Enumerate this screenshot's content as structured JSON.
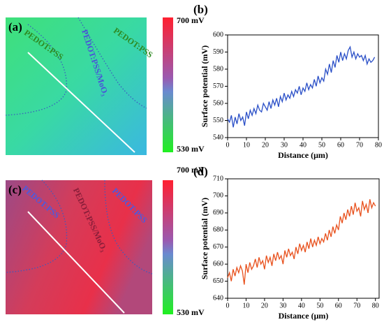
{
  "images": [
    {
      "label": "(a)",
      "regions": [
        "PEDOT:PSS",
        "PEDOT:PSS/MoO₃",
        "PEDOT:PSS"
      ],
      "scale_max": "700 mV",
      "scale_min": "530 mV"
    },
    {
      "label": "(c)",
      "regions": [
        "PEDOT:PSS",
        "PEDOT:PSS/MoO₃",
        "PEDOT:PSS"
      ],
      "scale_max": "700 mV",
      "scale_min": "530 mV"
    }
  ],
  "chart_data": [
    {
      "type": "line",
      "label": "(b)",
      "x_label": "Distance (μm)",
      "y_label": "Surface potential (mV)",
      "x": [
        0,
        1,
        2,
        3,
        4,
        5,
        6,
        7,
        8,
        9,
        10,
        11,
        12,
        13,
        14,
        15,
        16,
        17,
        18,
        19,
        20,
        21,
        22,
        23,
        24,
        25,
        26,
        27,
        28,
        29,
        30,
        31,
        32,
        33,
        34,
        35,
        36,
        37,
        38,
        39,
        40,
        41,
        42,
        43,
        44,
        45,
        46,
        47,
        48,
        49,
        50,
        51,
        52,
        53,
        54,
        55,
        56,
        57,
        58,
        59,
        60,
        61,
        62,
        63,
        64,
        65,
        66,
        67,
        68,
        69,
        70,
        71,
        72,
        73,
        74,
        75,
        76,
        77,
        78
      ],
      "series": [
        {
          "color": "#2a4fc7",
          "values": [
            551,
            549,
            553,
            546,
            552,
            548,
            554,
            550,
            552,
            547,
            555,
            551,
            556,
            553,
            557,
            554,
            559,
            556,
            555,
            560,
            558,
            556,
            561,
            557,
            562,
            559,
            563,
            558,
            564,
            561,
            566,
            562,
            565,
            563,
            567,
            564,
            568,
            566,
            570,
            565,
            569,
            567,
            572,
            568,
            571,
            569,
            574,
            570,
            576,
            572,
            575,
            573,
            580,
            577,
            583,
            578,
            585,
            581,
            588,
            584,
            590,
            585,
            589,
            586,
            591,
            593,
            587,
            590,
            586,
            589,
            587,
            588,
            585,
            588,
            583,
            586,
            584,
            585,
            587
          ]
        }
      ],
      "xlim": [
        0,
        80
      ],
      "xticks": [
        0,
        10,
        20,
        30,
        40,
        50,
        60,
        70,
        80
      ],
      "ylim": [
        540,
        600
      ],
      "yticks": [
        540,
        550,
        560,
        570,
        580,
        590,
        600
      ]
    },
    {
      "type": "line",
      "label": "(d)",
      "x_label": "Distance (μm)",
      "y_label": "Surface potential (mV)",
      "x": [
        0,
        1,
        2,
        3,
        4,
        5,
        6,
        7,
        8,
        9,
        10,
        11,
        12,
        13,
        14,
        15,
        16,
        17,
        18,
        19,
        20,
        21,
        22,
        23,
        24,
        25,
        26,
        27,
        28,
        29,
        30,
        31,
        32,
        33,
        34,
        35,
        36,
        37,
        38,
        39,
        40,
        41,
        42,
        43,
        44,
        45,
        46,
        47,
        48,
        49,
        50,
        51,
        52,
        53,
        54,
        55,
        56,
        57,
        58,
        59,
        60,
        61,
        62,
        63,
        64,
        65,
        66,
        67,
        68,
        69,
        70,
        71,
        72,
        73,
        74,
        75,
        76,
        77,
        78,
        79,
        80
      ],
      "series": [
        {
          "color": "#e8501c",
          "values": [
            652,
            655,
            650,
            657,
            653,
            658,
            655,
            659,
            656,
            648,
            660,
            655,
            661,
            657,
            659,
            663,
            658,
            664,
            660,
            662,
            657,
            665,
            661,
            664,
            659,
            666,
            662,
            667,
            663,
            665,
            660,
            668,
            664,
            669,
            665,
            667,
            663,
            670,
            666,
            672,
            668,
            671,
            667,
            673,
            669,
            675,
            670,
            674,
            671,
            676,
            672,
            675,
            673,
            678,
            674,
            680,
            676,
            682,
            678,
            683,
            680,
            688,
            684,
            690,
            686,
            692,
            688,
            694,
            689,
            696,
            691,
            693,
            688,
            697,
            692,
            695,
            690,
            698,
            693,
            696,
            694
          ]
        }
      ],
      "xlim": [
        0,
        82
      ],
      "xticks": [
        0,
        10,
        20,
        30,
        40,
        50,
        60,
        70,
        80
      ],
      "ylim": [
        640,
        710
      ],
      "yticks": [
        640,
        650,
        660,
        670,
        680,
        690,
        700,
        710
      ]
    }
  ]
}
